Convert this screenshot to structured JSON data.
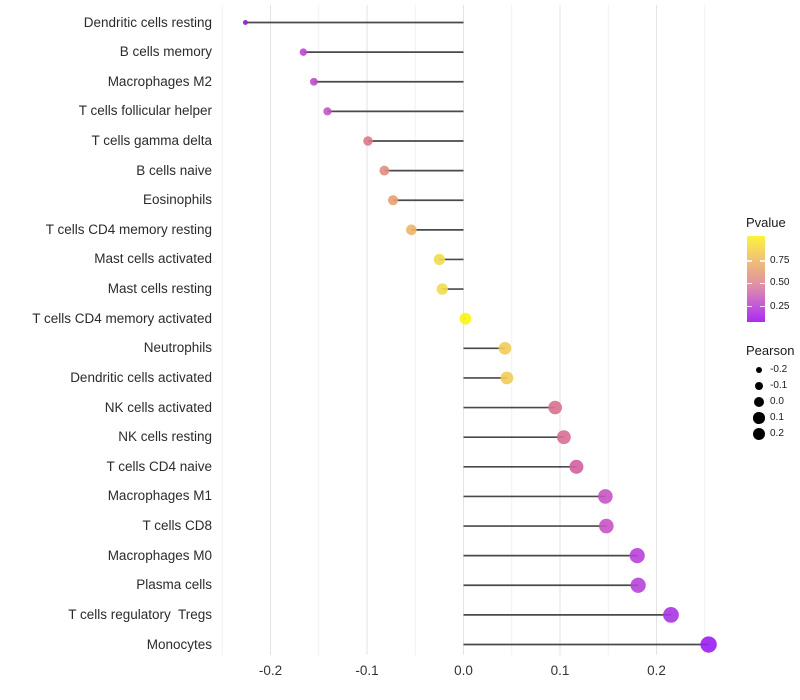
{
  "chart_data": {
    "type": "lollipop",
    "title": "",
    "xlabel": "",
    "ylabel": "",
    "x_ticks": [
      {
        "value": -0.2,
        "label": "-0.2"
      },
      {
        "value": -0.1,
        "label": "-0.1"
      },
      {
        "value": 0.0,
        "label": "0.0"
      },
      {
        "value": 0.1,
        "label": "0.1"
      },
      {
        "value": 0.2,
        "label": "0.2"
      }
    ],
    "x_minor_gridlines": [
      -0.25,
      -0.15,
      -0.05,
      0.05,
      0.15,
      0.25
    ],
    "xlim": [
      -0.255,
      0.265
    ],
    "grid": "vertical major and minor, no horizontal",
    "baseline": 0.0,
    "rows": [
      {
        "label": "Dendritic cells resting",
        "pearson": -0.226,
        "color": "#8E1FD6"
      },
      {
        "label": "B cells memory",
        "pearson": -0.166,
        "color": "#BC48CE"
      },
      {
        "label": "Macrophages M2",
        "pearson": -0.155,
        "color": "#BE4CCA"
      },
      {
        "label": "T cells follicular helper",
        "pearson": -0.141,
        "color": "#C355C4"
      },
      {
        "label": "T cells gamma delta",
        "pearson": -0.099,
        "color": "#D9798C"
      },
      {
        "label": "B cells naive",
        "pearson": -0.082,
        "color": "#E08E7E"
      },
      {
        "label": "Eosinophils",
        "pearson": -0.073,
        "color": "#E8A071"
      },
      {
        "label": "T cells CD4 memory resting",
        "pearson": -0.054,
        "color": "#EDB563"
      },
      {
        "label": "Mast cells activated",
        "pearson": -0.025,
        "color": "#F2DC4D"
      },
      {
        "label": "Mast cells resting",
        "pearson": -0.022,
        "color": "#F2DC4D"
      },
      {
        "label": "T cells CD4 memory activated",
        "pearson": 0.002,
        "color": "#FBF50E"
      },
      {
        "label": "Neutrophils",
        "pearson": 0.043,
        "color": "#F0CC58"
      },
      {
        "label": "Dendritic cells activated",
        "pearson": 0.045,
        "color": "#F0CC58"
      },
      {
        "label": "NK cells activated",
        "pearson": 0.095,
        "color": "#D8728E"
      },
      {
        "label": "NK cells resting",
        "pearson": 0.104,
        "color": "#D66F93"
      },
      {
        "label": "T cells CD4 naive",
        "pearson": 0.117,
        "color": "#D2609F"
      },
      {
        "label": "Macrophages M1",
        "pearson": 0.147,
        "color": "#C754C4"
      },
      {
        "label": "T cells CD8",
        "pearson": 0.148,
        "color": "#C754C4"
      },
      {
        "label": "Macrophages M0",
        "pearson": 0.18,
        "color": "#B843D8"
      },
      {
        "label": "Plasma cells",
        "pearson": 0.181,
        "color": "#B843D8"
      },
      {
        "label": "T cells regulatory  Tregs",
        "pearson": 0.215,
        "color": "#A935E3"
      },
      {
        "label": "Monocytes",
        "pearson": 0.254,
        "color": "#9A1EF0"
      }
    ],
    "legend": {
      "pvalue": {
        "title": "Pvalue",
        "tick_labels": [
          "0.75",
          "0.50",
          "0.25"
        ],
        "gradient_bottom_to_top": [
          "#AC2BF0",
          "#C45BD8",
          "#DC8BAC",
          "#EAAC85",
          "#F4CE68",
          "#FCF43C"
        ]
      },
      "pearson": {
        "title": "Pearson",
        "entries": [
          {
            "label": "-0.2"
          },
          {
            "label": "-0.1"
          },
          {
            "label": "0.0"
          },
          {
            "label": "0.1"
          },
          {
            "label": "0.2"
          }
        ]
      }
    },
    "style": {
      "stem_color": "#4A4A4A",
      "major_grid_color": "#E3E3E3",
      "minor_grid_color": "#F1F1F1"
    }
  }
}
